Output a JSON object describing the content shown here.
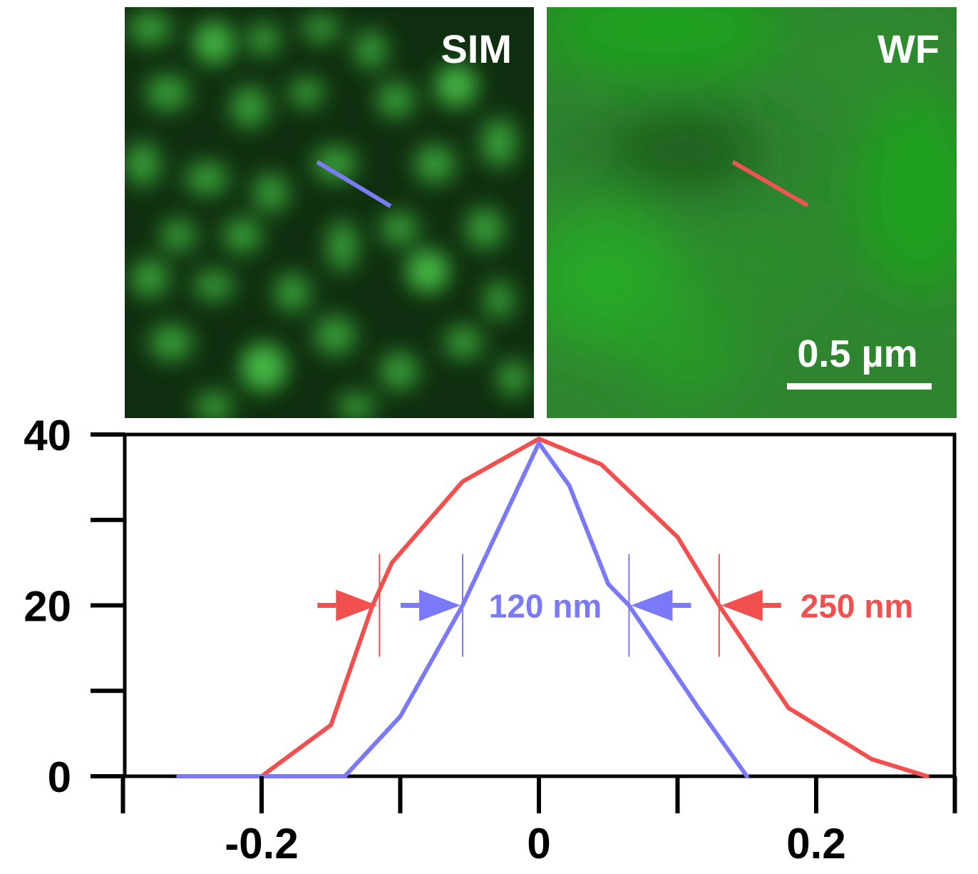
{
  "panels": {
    "sim": {
      "label": "SIM",
      "line_color": "#7b7cf5"
    },
    "wf": {
      "label": "WF",
      "line_color": "#f05454"
    },
    "scale_bar_label": "0.5 µm"
  },
  "colors": {
    "wf_red": "#f24f4f",
    "sim_blue": "#7a79f7",
    "axis": "#000000"
  },
  "chart_data": {
    "type": "line",
    "xlim": [
      -0.3,
      0.3
    ],
    "ylim": [
      0,
      40
    ],
    "x_ticks": [
      -0.2,
      0,
      0.2
    ],
    "x_tick_labels": [
      "-0.2",
      "0",
      "0.2"
    ],
    "x_minor_ticks": [
      -0.3,
      -0.1,
      0.1,
      0.3
    ],
    "y_ticks": [
      0,
      20,
      40
    ],
    "y_tick_labels": [
      "0",
      "20",
      "40"
    ],
    "y_minor_ticks": [
      10,
      30
    ],
    "grid": false,
    "series": [
      {
        "color": "#f24f4f",
        "points": [
          [
            -0.26,
            0
          ],
          [
            -0.2,
            0
          ],
          [
            -0.15,
            6
          ],
          [
            -0.12,
            20
          ],
          [
            -0.106,
            25
          ],
          [
            -0.055,
            34.5
          ],
          [
            0,
            39.5
          ],
          [
            0.045,
            36.5
          ],
          [
            0.1,
            28
          ],
          [
            0.13,
            20
          ],
          [
            0.18,
            8
          ],
          [
            0.24,
            2
          ],
          [
            0.28,
            0
          ]
        ]
      },
      {
        "color": "#7a79f7",
        "points": [
          [
            -0.26,
            0
          ],
          [
            -0.14,
            0
          ],
          [
            -0.1,
            7
          ],
          [
            -0.055,
            20
          ],
          [
            0,
            39
          ],
          [
            0.022,
            34
          ],
          [
            0.05,
            22.5
          ],
          [
            0.065,
            20
          ],
          [
            0.115,
            8
          ],
          [
            0.15,
            0
          ]
        ]
      }
    ],
    "annotations": [
      {
        "text": "120 nm",
        "color": "#7a79f7",
        "x_left": -0.055,
        "x_right": 0.065,
        "y": 20
      },
      {
        "text": "250 nm",
        "color": "#f24f4f",
        "x_left": -0.115,
        "x_right": 0.13,
        "y": 20
      }
    ]
  }
}
